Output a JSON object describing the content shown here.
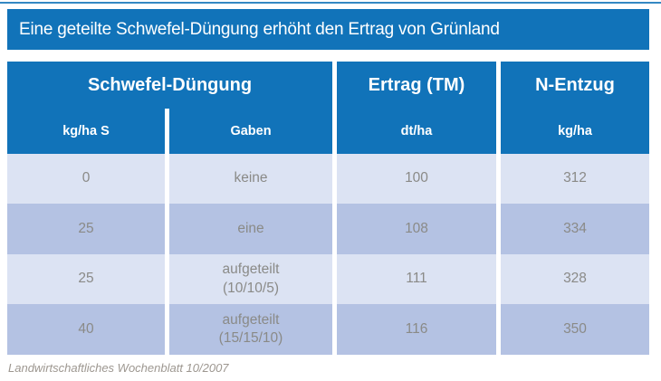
{
  "colors": {
    "header_blue": "#1173b9",
    "row_light": "#dce3f3",
    "row_dark": "#b4c2e3",
    "body_text": "#8a8a87",
    "source_text": "#9d9790"
  },
  "header": {
    "title": "Eine geteilte Schwefel-Düngung erhöht den Ertrag von Grünland"
  },
  "chart_data": {
    "type": "table",
    "title": "Eine geteilte Schwefel-Düngung erhöht den Ertrag von Grünland",
    "column_groups": [
      {
        "label": "Schwefel-Düngung",
        "columns": [
          "kg/ha S",
          "Gaben"
        ]
      },
      {
        "label": "Ertrag (TM)",
        "columns": [
          "dt/ha"
        ]
      },
      {
        "label": "N-Entzug",
        "columns": [
          "kg/ha"
        ]
      }
    ],
    "sub_headers": [
      "kg/ha S",
      "Gaben",
      "dt/ha",
      "kg/ha"
    ],
    "rows": [
      {
        "s_kg_ha": "0",
        "gaben": "keine",
        "gaben_detail": "",
        "ertrag_dt_ha": "100",
        "n_entzug_kg_ha": "312"
      },
      {
        "s_kg_ha": "25",
        "gaben": "eine",
        "gaben_detail": "",
        "ertrag_dt_ha": "108",
        "n_entzug_kg_ha": "334"
      },
      {
        "s_kg_ha": "25",
        "gaben": "aufgeteilt",
        "gaben_detail": "(10/10/5)",
        "ertrag_dt_ha": "111",
        "n_entzug_kg_ha": "328"
      },
      {
        "s_kg_ha": "40",
        "gaben": "aufgeteilt",
        "gaben_detail": "(15/15/10)",
        "ertrag_dt_ha": "116",
        "n_entzug_kg_ha": "350"
      }
    ],
    "source": "Landwirtschaftliches Wochenblatt 10/2007"
  }
}
